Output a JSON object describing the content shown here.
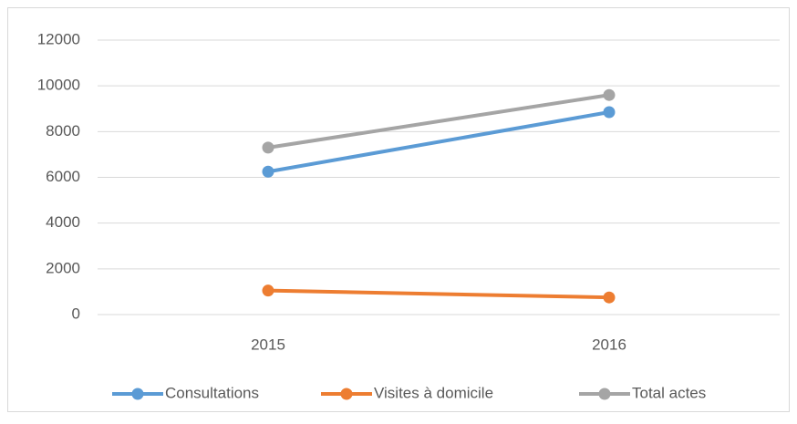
{
  "chart_data": {
    "type": "line",
    "categories": [
      "2015",
      "2016"
    ],
    "series": [
      {
        "name": "Consultations",
        "color": "#5b9bd5",
        "values": [
          6250,
          8850
        ]
      },
      {
        "name": "Visites à domicile",
        "color": "#ed7d31",
        "values": [
          1050,
          750
        ]
      },
      {
        "name": "Total actes",
        "color": "#a5a5a5",
        "values": [
          7300,
          9600
        ]
      }
    ],
    "ylim": [
      0,
      12000
    ],
    "yticks": [
      0,
      2000,
      4000,
      6000,
      8000,
      10000,
      12000
    ],
    "grid": true,
    "legend": "bottom"
  }
}
